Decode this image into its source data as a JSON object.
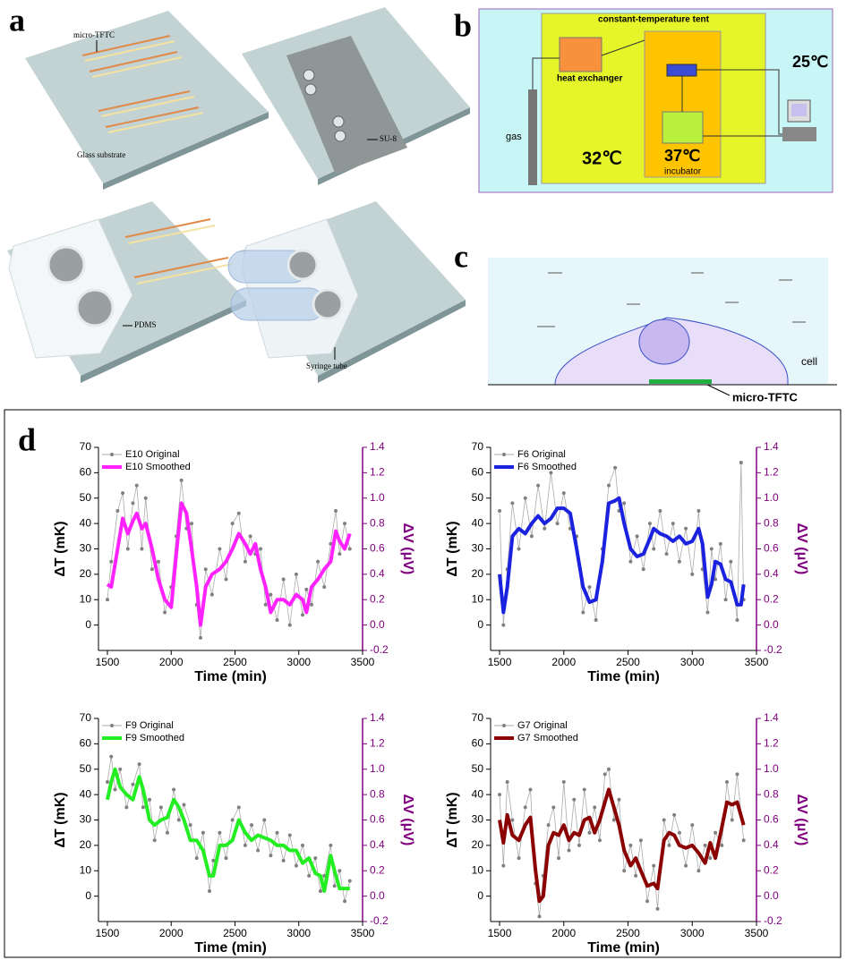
{
  "panel_a": {
    "label": "a",
    "micro_tftc": "micro-TFTC",
    "glass_substrate": "Glass substrate",
    "su8": "SU-8",
    "pdms": "PDMS",
    "syringe_tube": "Syringe tube"
  },
  "panel_b": {
    "label": "b",
    "tent": "constant-temperature tent",
    "heat_exchanger": "heat exchanger",
    "room_temp": "25℃",
    "gas": "gas",
    "tent_temp": "32℃",
    "incubator_temp": "37℃",
    "incubator": "incubator"
  },
  "panel_c": {
    "label": "c",
    "cell": "cell",
    "sensor": "micro-TFTC"
  },
  "panel_d": {
    "label": "d"
  },
  "chart_data": [
    {
      "type": "line",
      "xlabel": "Time (min)",
      "ylabel": "ΔT (mK)",
      "y2label": "ΔV (μV)",
      "xlim": [
        1430,
        3500
      ],
      "ylim": [
        -10,
        70
      ],
      "y2lim": [
        -0.2,
        1.4
      ],
      "xticks": [
        1500,
        2000,
        2500,
        3000,
        3500
      ],
      "yticks": [
        0,
        10,
        20,
        30,
        40,
        50,
        60,
        70
      ],
      "y2ticks": [
        -0.2,
        {
          "value": 0,
          "label": "0.0"
        },
        0.2,
        0.4,
        0.6,
        0.8,
        {
          "value": 1,
          "label": "1.0"
        },
        1.2,
        1.4
      ],
      "legend": "upper left",
      "x": [
        1500,
        1530,
        1580,
        1620,
        1660,
        1700,
        1730,
        1770,
        1800,
        1850,
        1900,
        1950,
        2000,
        2040,
        2080,
        2120,
        2160,
        2200,
        2230,
        2270,
        2320,
        2380,
        2430,
        2480,
        2530,
        2580,
        2620,
        2660,
        2700,
        2740,
        2780,
        2830,
        2880,
        2930,
        2980,
        3030,
        3060,
        3100,
        3150,
        3200,
        3250,
        3290,
        3320,
        3360,
        3400
      ],
      "series": [
        {
          "name": "E10 Original",
          "color": "#808080",
          "marker": true,
          "values": [
            10,
            25,
            45,
            52,
            30,
            48,
            55,
            30,
            50,
            22,
            25,
            5,
            15,
            35,
            57,
            38,
            40,
            8,
            -5,
            22,
            12,
            30,
            18,
            40,
            44,
            25,
            35,
            28,
            30,
            8,
            12,
            2,
            18,
            0,
            20,
            4,
            14,
            8,
            25,
            15,
            32,
            45,
            28,
            40,
            30
          ]
        },
        {
          "name": "E10 Smoothed",
          "color": "#ff22ff",
          "values": [
            16,
            15,
            30,
            42,
            36,
            41,
            44,
            38,
            40,
            30,
            18,
            10,
            7,
            28,
            48,
            44,
            30,
            15,
            0,
            15,
            20,
            22,
            25,
            30,
            36,
            32,
            28,
            32,
            22,
            15,
            5,
            10,
            10,
            8,
            12,
            10,
            5,
            15,
            18,
            22,
            25,
            37,
            33,
            30,
            36
          ]
        }
      ]
    },
    {
      "type": "line",
      "xlabel": "Time (min)",
      "ylabel": "ΔT (mK)",
      "y2label": "ΔV (μV)",
      "xlim": [
        1430,
        3500
      ],
      "ylim": [
        -10,
        70
      ],
      "y2lim": [
        -0.2,
        1.4
      ],
      "xticks": [
        1500,
        2000,
        2500,
        3000,
        3500
      ],
      "yticks": [
        0,
        10,
        20,
        30,
        40,
        50,
        60,
        70
      ],
      "y2ticks": [
        -0.2,
        {
          "value": 0,
          "label": "0.0"
        },
        0.2,
        0.4,
        0.6,
        0.8,
        {
          "value": 1,
          "label": "1.0"
        },
        1.2,
        1.4
      ],
      "legend": "upper left",
      "x": [
        1500,
        1530,
        1560,
        1600,
        1650,
        1700,
        1750,
        1800,
        1850,
        1900,
        1950,
        2000,
        2050,
        2100,
        2150,
        2200,
        2250,
        2300,
        2350,
        2400,
        2430,
        2470,
        2520,
        2570,
        2620,
        2670,
        2700,
        2750,
        2800,
        2850,
        2900,
        2950,
        3000,
        3050,
        3080,
        3120,
        3150,
        3180,
        3220,
        3260,
        3300,
        3350,
        3380,
        3400
      ],
      "series": [
        {
          "name": "F6 Original",
          "color": "#808080",
          "marker": true,
          "values": [
            45,
            0,
            22,
            48,
            30,
            50,
            35,
            55,
            38,
            60,
            40,
            52,
            38,
            35,
            5,
            15,
            2,
            30,
            55,
            62,
            45,
            48,
            25,
            35,
            22,
            40,
            30,
            45,
            28,
            40,
            25,
            38,
            20,
            45,
            22,
            5,
            30,
            18,
            32,
            10,
            25,
            2,
            64,
            10
          ]
        },
        {
          "name": "F6 Smoothed",
          "color": "#1a22e0",
          "values": [
            20,
            5,
            15,
            35,
            38,
            36,
            40,
            43,
            40,
            42,
            46,
            46,
            44,
            30,
            15,
            9,
            10,
            25,
            48,
            49,
            50,
            40,
            30,
            27,
            28,
            34,
            38,
            36,
            35,
            33,
            35,
            32,
            33,
            38,
            32,
            11,
            16,
            25,
            24,
            18,
            17,
            8,
            8,
            16
          ]
        }
      ]
    },
    {
      "type": "line",
      "xlabel": "Time (min)",
      "ylabel": "ΔT (mK)",
      "y2label": "ΔV (μV)",
      "xlim": [
        1430,
        3500
      ],
      "ylim": [
        -10,
        70
      ],
      "y2lim": [
        -0.2,
        1.4
      ],
      "xticks": [
        1500,
        2000,
        2500,
        3000,
        3500
      ],
      "yticks": [
        0,
        10,
        20,
        30,
        40,
        50,
        60,
        70
      ],
      "y2ticks": [
        -0.2,
        {
          "value": 0,
          "label": "0.0"
        },
        0.2,
        0.4,
        0.6,
        0.8,
        {
          "value": 1,
          "label": "1.0"
        },
        1.2,
        1.4
      ],
      "legend": "upper left",
      "x": [
        1500,
        1530,
        1560,
        1600,
        1650,
        1700,
        1750,
        1780,
        1830,
        1870,
        1920,
        1970,
        2020,
        2060,
        2100,
        2150,
        2200,
        2250,
        2300,
        2330,
        2380,
        2430,
        2480,
        2530,
        2580,
        2630,
        2680,
        2730,
        2780,
        2830,
        2880,
        2930,
        2980,
        3030,
        3080,
        3130,
        3170,
        3200,
        3250,
        3280,
        3320,
        3360,
        3400
      ],
      "series": [
        {
          "name": "F9 Original",
          "color": "#808080",
          "marker": true,
          "values": [
            45,
            55,
            42,
            50,
            35,
            44,
            52,
            35,
            38,
            22,
            35,
            25,
            42,
            30,
            36,
            28,
            15,
            25,
            2,
            14,
            25,
            15,
            30,
            35,
            20,
            28,
            18,
            30,
            16,
            25,
            14,
            24,
            12,
            20,
            8,
            15,
            2,
            8,
            20,
            4,
            10,
            -2,
            6
          ]
        },
        {
          "name": "F9 Smoothed",
          "color": "#22ee22",
          "values": [
            38,
            45,
            50,
            43,
            40,
            38,
            47,
            42,
            30,
            28,
            30,
            31,
            38,
            35,
            30,
            22,
            22,
            18,
            8,
            8,
            20,
            20,
            22,
            30,
            25,
            22,
            24,
            23,
            22,
            20,
            20,
            18,
            18,
            13,
            15,
            9,
            8,
            2,
            16,
            10,
            3,
            3,
            3
          ]
        }
      ]
    },
    {
      "type": "line",
      "xlabel": "Time (min)",
      "ylabel": "ΔT (mK)",
      "y2label": "ΔV (μV)",
      "xlim": [
        1430,
        3500
      ],
      "ylim": [
        -10,
        70
      ],
      "y2lim": [
        -0.2,
        1.4
      ],
      "xticks": [
        1500,
        2000,
        2500,
        3000,
        3500
      ],
      "yticks": [
        0,
        10,
        20,
        30,
        40,
        50,
        60,
        70
      ],
      "y2ticks": [
        -0.2,
        {
          "value": 0,
          "label": "0.0"
        },
        0.2,
        0.4,
        0.6,
        0.8,
        {
          "value": 1,
          "label": "1.0"
        },
        1.2,
        1.4
      ],
      "legend": "upper left",
      "x": [
        1500,
        1530,
        1560,
        1600,
        1650,
        1700,
        1740,
        1780,
        1810,
        1840,
        1880,
        1920,
        1960,
        2000,
        2040,
        2080,
        2120,
        2160,
        2200,
        2240,
        2280,
        2320,
        2350,
        2390,
        2430,
        2470,
        2520,
        2560,
        2600,
        2650,
        2700,
        2730,
        2780,
        2820,
        2860,
        2900,
        2950,
        3000,
        3050,
        3100,
        3140,
        3180,
        3230,
        3270,
        3310,
        3350,
        3400
      ],
      "series": [
        {
          "name": "G7 Original",
          "color": "#808080",
          "marker": true,
          "values": [
            40,
            12,
            45,
            30,
            15,
            35,
            42,
            5,
            -8,
            8,
            28,
            35,
            15,
            45,
            18,
            38,
            20,
            42,
            25,
            35,
            22,
            48,
            50,
            30,
            38,
            10,
            20,
            8,
            22,
            -2,
            12,
            -5,
            30,
            20,
            32,
            25,
            12,
            28,
            10,
            20,
            15,
            25,
            20,
            45,
            30,
            48,
            22
          ]
        },
        {
          "name": "G7 Smoothed",
          "color": "#8b0000",
          "values": [
            30,
            21,
            32,
            24,
            22,
            28,
            31,
            10,
            -2,
            0,
            20,
            25,
            24,
            28,
            22,
            25,
            24,
            30,
            31,
            25,
            30,
            37,
            42,
            35,
            28,
            18,
            12,
            15,
            10,
            4,
            5,
            3,
            22,
            25,
            24,
            20,
            19,
            20,
            17,
            13,
            21,
            15,
            27,
            37,
            36,
            37,
            28
          ]
        }
      ]
    }
  ]
}
